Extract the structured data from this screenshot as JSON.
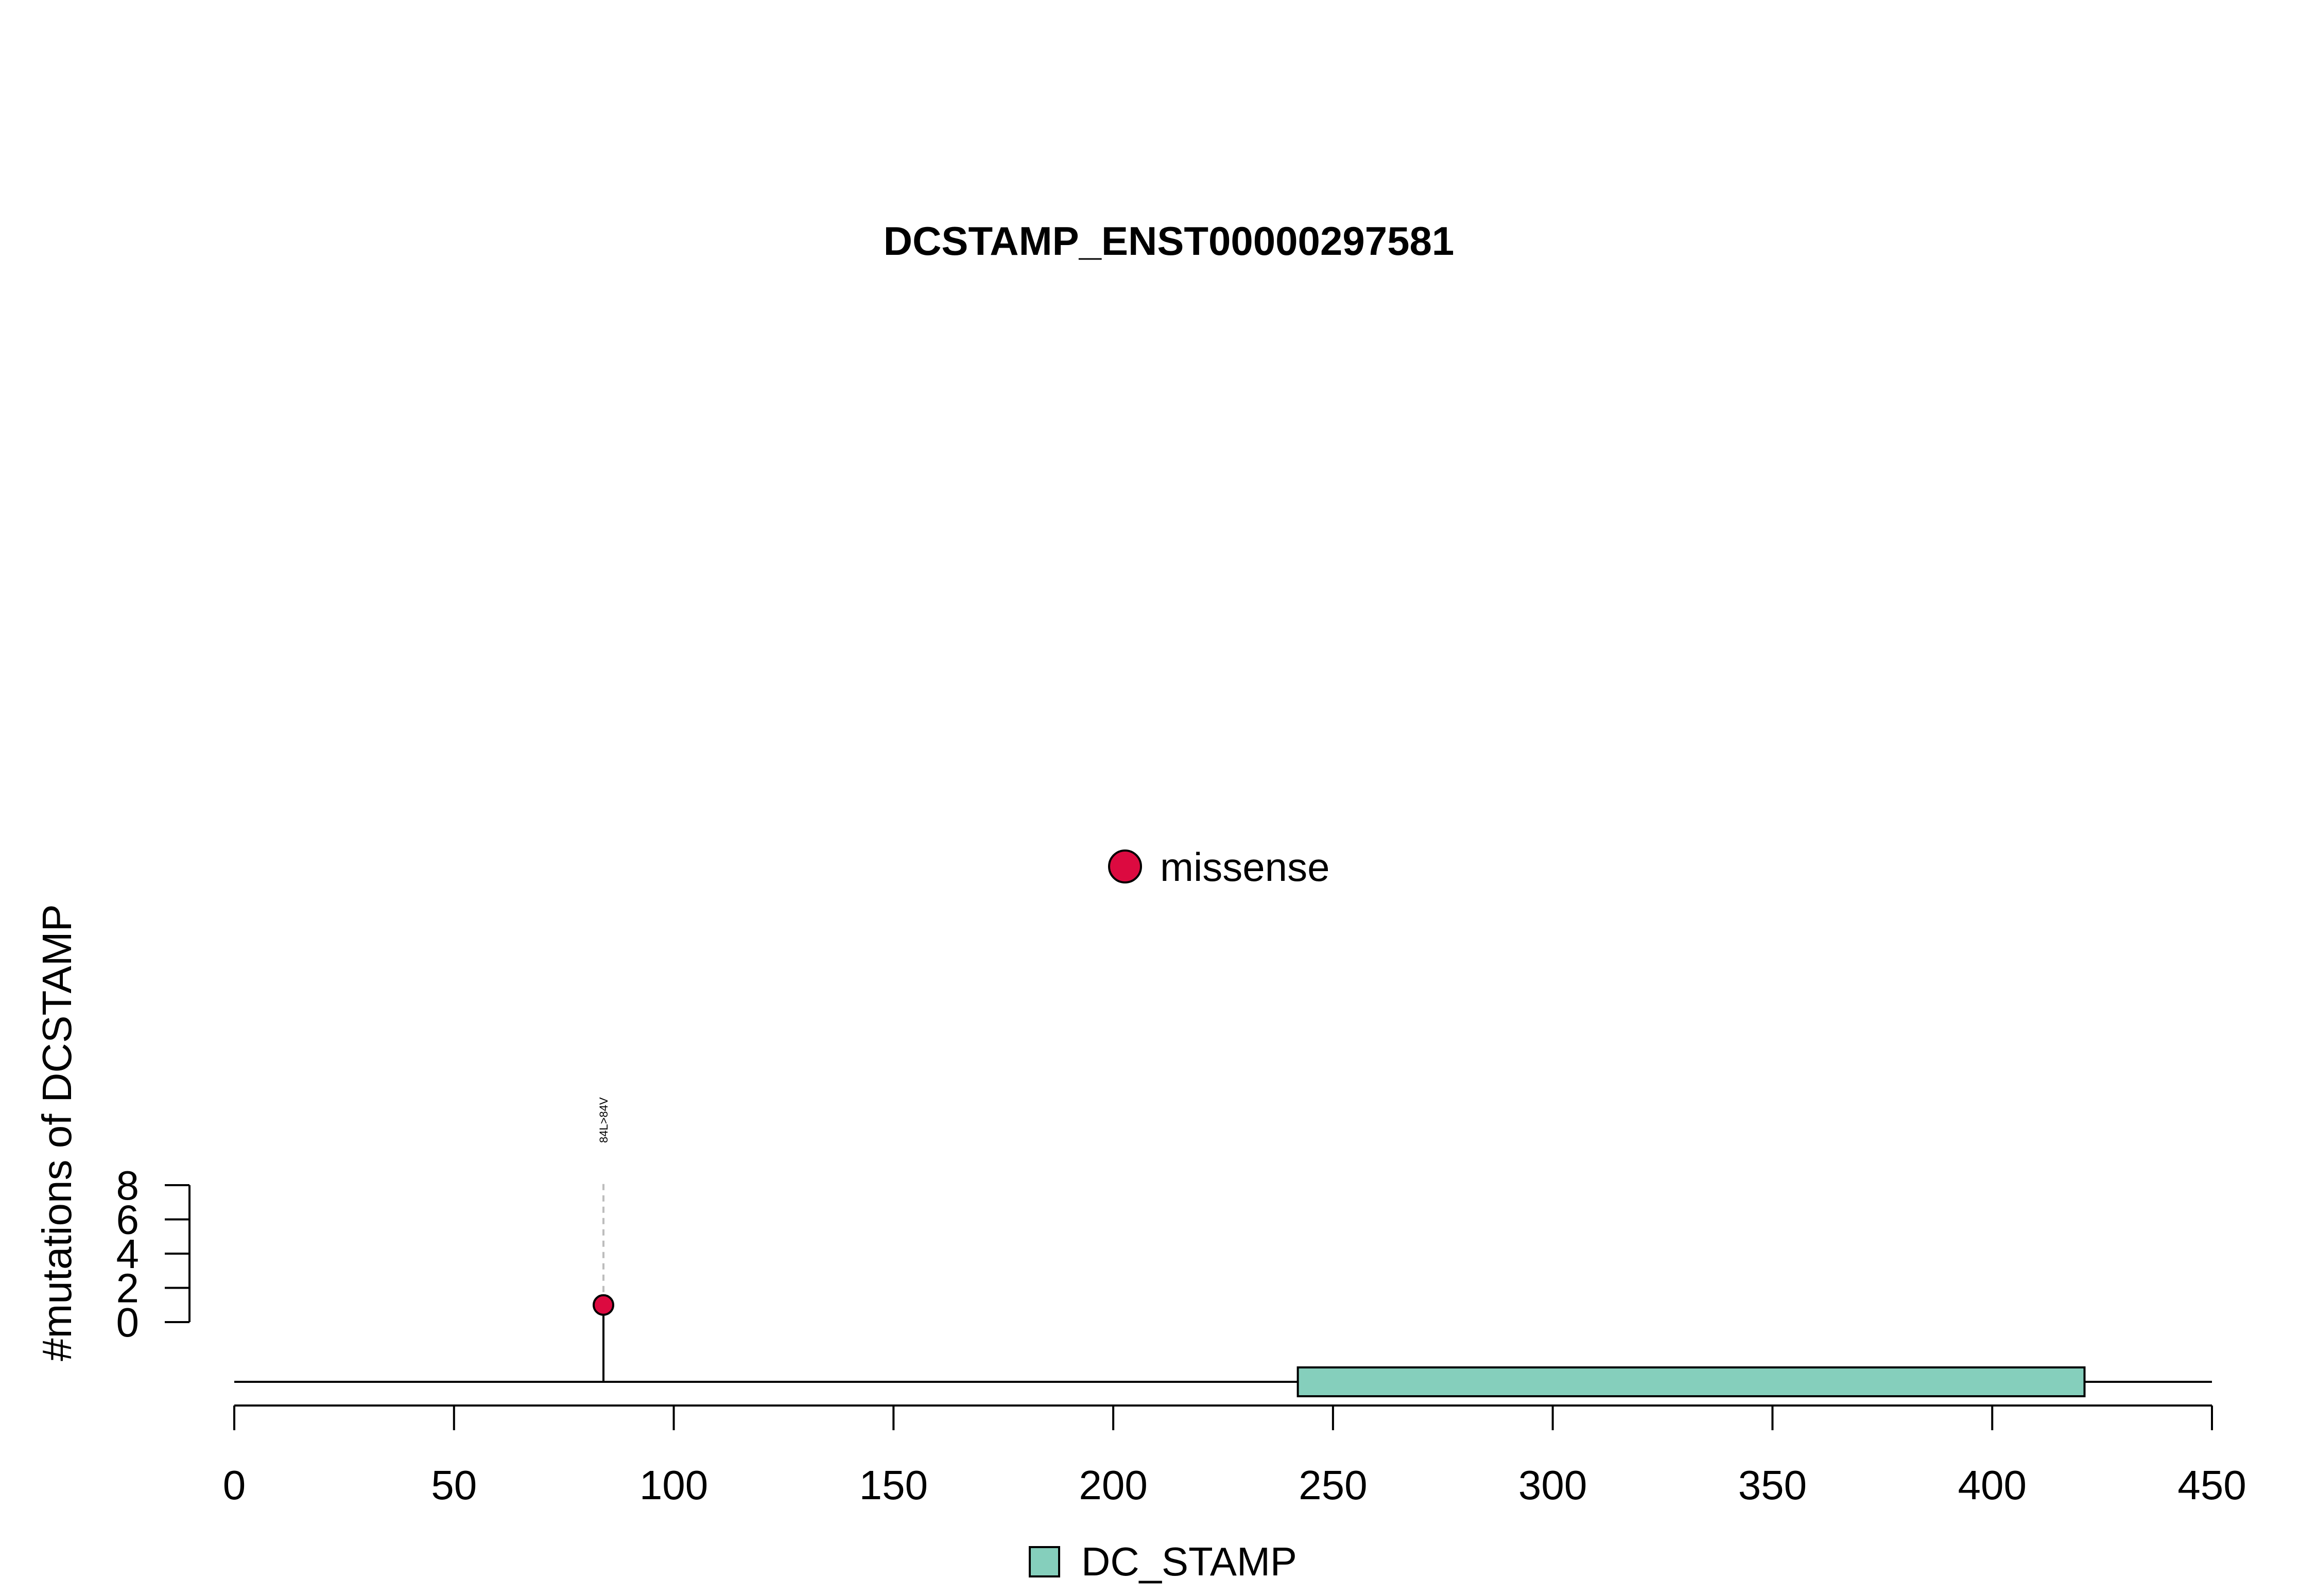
{
  "chart_data": {
    "type": "lollipop",
    "title": "DCSTAMP_ENST00000297581",
    "ylabel": "#mutations of DCSTAMP",
    "xlim": [
      0,
      450
    ],
    "ylim": [
      0,
      8
    ],
    "x_ticks": [
      0,
      50,
      100,
      150,
      200,
      250,
      300,
      350,
      400,
      450
    ],
    "y_ticks": [
      0,
      2,
      4,
      6,
      8
    ],
    "protein_length": 450,
    "mutations": [
      {
        "position": 84,
        "count": 1,
        "label": "84L>84V",
        "type": "missense"
      }
    ],
    "domains": [
      {
        "name": "DC_STAMP",
        "start": 242,
        "end": 421,
        "color": "#85cfbc"
      }
    ],
    "mutation_legend": [
      {
        "label": "missense",
        "color": "#dc0a40"
      }
    ],
    "domain_legend": [
      {
        "label": "DC_STAMP",
        "color": "#85cfbc"
      }
    ]
  }
}
